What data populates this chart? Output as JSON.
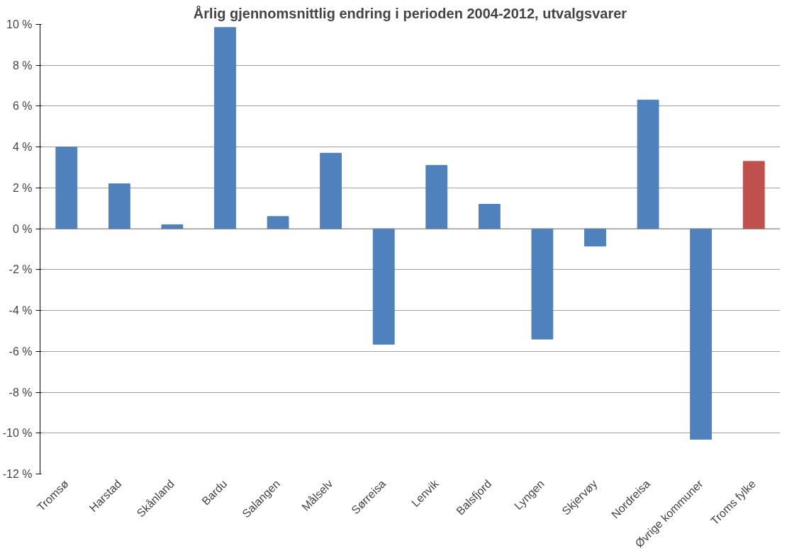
{
  "chart_data": {
    "type": "bar",
    "title": "Årlig gjennomsnittlig endring i perioden 2004-2012, utvalgsvarer",
    "categories": [
      "Tromsø",
      "Harstad",
      "Skånland",
      "Bardu",
      "Salangen",
      "Målselv",
      "Sørreisa",
      "Lenvik",
      "Balsfjord",
      "Lyngen",
      "Skjervøy",
      "Nordreisa",
      "Øvrige kommuner",
      "Troms fylke"
    ],
    "values": [
      4.0,
      2.2,
      0.2,
      9.85,
      0.6,
      3.7,
      -5.65,
      3.1,
      1.2,
      -5.4,
      -0.85,
      6.3,
      -10.3,
      3.3
    ],
    "colors": [
      "#4f81bd",
      "#4f81bd",
      "#4f81bd",
      "#4f81bd",
      "#4f81bd",
      "#4f81bd",
      "#4f81bd",
      "#4f81bd",
      "#4f81bd",
      "#4f81bd",
      "#4f81bd",
      "#4f81bd",
      "#4f81bd",
      "#c0504d"
    ],
    "ylim": [
      -12,
      10
    ],
    "yticks": [
      {
        "value": -12,
        "label": "-12 %"
      },
      {
        "value": -10,
        "label": "-10 %"
      },
      {
        "value": -8,
        "label": "-8 %"
      },
      {
        "value": -6,
        "label": "-6 %"
      },
      {
        "value": -4,
        "label": "-4 %"
      },
      {
        "value": -2,
        "label": "-2 %"
      },
      {
        "value": 0,
        "label": "0 %"
      },
      {
        "value": 2,
        "label": "2 %"
      },
      {
        "value": 4,
        "label": "4 %"
      },
      {
        "value": 6,
        "label": "6 %"
      },
      {
        "value": 8,
        "label": "8 %"
      },
      {
        "value": 10,
        "label": "10 %"
      }
    ],
    "grid": "y"
  }
}
